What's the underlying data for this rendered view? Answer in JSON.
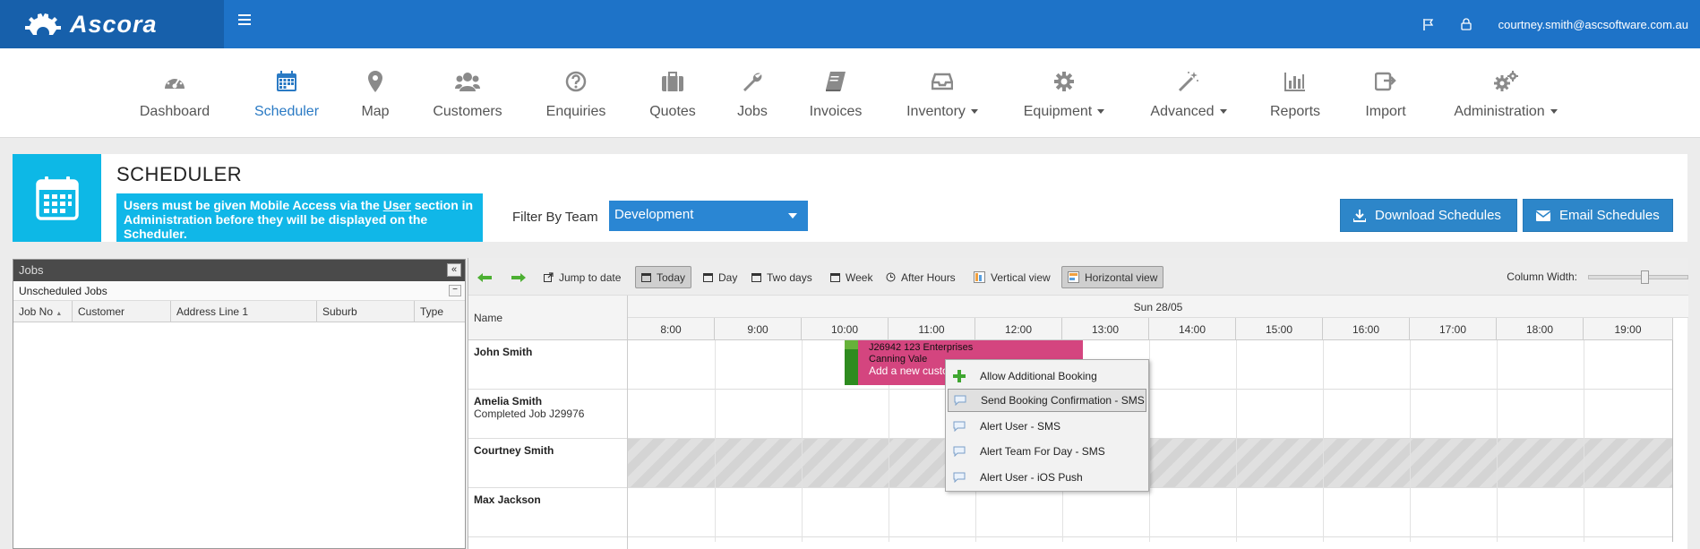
{
  "app": {
    "logo_text": "Ascora",
    "user_email": "courtney.smith@ascsoftware.com.au"
  },
  "nav": {
    "items": [
      {
        "label": "Dashboard",
        "icon": "dashboard-icon"
      },
      {
        "label": "Scheduler",
        "icon": "calendar-icon",
        "active": true
      },
      {
        "label": "Map",
        "icon": "map-pin-icon"
      },
      {
        "label": "Customers",
        "icon": "users-icon"
      },
      {
        "label": "Enquiries",
        "icon": "question-icon"
      },
      {
        "label": "Quotes",
        "icon": "briefcase-icon"
      },
      {
        "label": "Jobs",
        "icon": "wrench-icon"
      },
      {
        "label": "Invoices",
        "icon": "book-icon"
      },
      {
        "label": "Inventory",
        "icon": "inbox-icon",
        "dropdown": true
      },
      {
        "label": "Equipment",
        "icon": "gear-icon",
        "dropdown": true
      },
      {
        "label": "Advanced",
        "icon": "magic-wand-icon",
        "dropdown": true
      },
      {
        "label": "Reports",
        "icon": "bar-chart-icon"
      },
      {
        "label": "Import",
        "icon": "import-icon"
      },
      {
        "label": "Administration",
        "icon": "gears-icon",
        "dropdown": true
      }
    ]
  },
  "scheduler": {
    "title": "SCHEDULER",
    "notice_pre": "Users must be given Mobile Access via the ",
    "notice_link": "User",
    "notice_post": " section in Administration before they will be displayed on the Scheduler.",
    "filter_label": "Filter By Team",
    "filter_value": "Development",
    "download_label": "Download Schedules",
    "email_label": "Email Schedules"
  },
  "jobs_panel": {
    "title": "Jobs",
    "collapse": "«",
    "unscheduled": "Unscheduled Jobs",
    "minimize": "−",
    "columns": [
      "Job No",
      "Customer",
      "Address Line 1",
      "Suburb",
      "Type"
    ]
  },
  "toolbar": {
    "jump": "Jump to date",
    "today": "Today",
    "day": "Day",
    "two_days": "Two days",
    "week": "Week",
    "after_hours": "After Hours",
    "vertical": "Vertical view",
    "horizontal": "Horizontal view",
    "column_width": "Column Width:"
  },
  "grid": {
    "name_header": "Name",
    "date": "Sun 28/05",
    "hours": [
      "8:00",
      "9:00",
      "10:00",
      "11:00",
      "12:00",
      "13:00",
      "14:00",
      "15:00",
      "16:00",
      "17:00",
      "18:00",
      "19:00"
    ],
    "resources": [
      {
        "name": "John Smith",
        "sub": ""
      },
      {
        "name": "Amelia Smith",
        "sub": "Completed Job J29976"
      },
      {
        "name": "Courtney Smith",
        "sub": ""
      },
      {
        "name": "Max Jackson",
        "sub": ""
      }
    ]
  },
  "job": {
    "line1": "J26942 123 Enterprises",
    "line2": "Canning Vale",
    "line3": "Add a new custo",
    "colors": {
      "block": "#d4457f",
      "strip": "#2e8b1f"
    }
  },
  "context_menu": {
    "items": [
      {
        "label": "Allow Additional Booking",
        "icon": "plus-icon"
      },
      {
        "label": "Send Booking Confirmation - SMS",
        "icon": "chat-bubble-icon"
      },
      {
        "label": "Alert User - SMS",
        "icon": "chat-bubble-icon"
      },
      {
        "label": "Alert Team For Day - SMS",
        "icon": "chat-bubble-icon"
      },
      {
        "label": "Alert User - iOS Push",
        "icon": "chat-bubble-icon"
      }
    ]
  }
}
